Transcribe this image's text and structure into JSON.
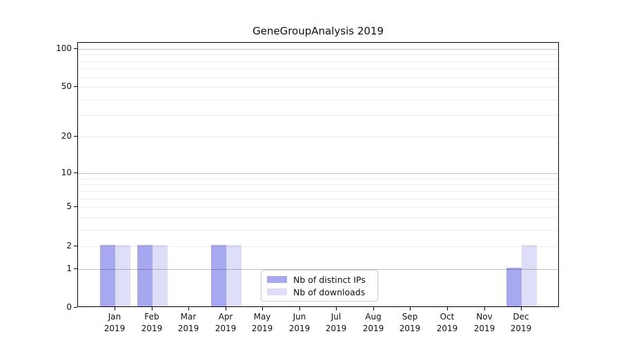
{
  "title": "GeneGroupAnalysis 2019",
  "chart_data": {
    "type": "bar",
    "title": "GeneGroupAnalysis 2019",
    "categories": [
      "Jan 2019",
      "Feb 2019",
      "Mar 2019",
      "Apr 2019",
      "May 2019",
      "Jun 2019",
      "Jul 2019",
      "Aug 2019",
      "Sep 2019",
      "Oct 2019",
      "Nov 2019",
      "Dec 2019"
    ],
    "series": [
      {
        "name": "Nb of distinct IPs",
        "color": "#a8a8f0",
        "values": [
          2,
          2,
          0,
          2,
          0,
          0,
          0,
          0,
          0,
          0,
          0,
          1
        ]
      },
      {
        "name": "Nb of downloads",
        "color": "#dedef8",
        "values": [
          2,
          2,
          0,
          2,
          0,
          0,
          0,
          0,
          0,
          0,
          0,
          2
        ]
      }
    ],
    "xlabel": "",
    "ylabel": "",
    "yscale": "log10(1+v)",
    "ylim": [
      0,
      112
    ],
    "yticks": [
      0,
      1,
      2,
      5,
      10,
      20,
      50,
      100
    ],
    "major_grid_values": [
      1,
      10,
      100
    ],
    "minor_grid_values": [
      2,
      3,
      4,
      5,
      6,
      7,
      8,
      9,
      20,
      30,
      40,
      50,
      60,
      70,
      80,
      90
    ],
    "grid": "both",
    "grid_major_color": "rgba(0,0,0,0.24)",
    "grid_minor_color": "rgba(0,0,0,0.07)",
    "axis_color": "#000000",
    "legend_position": "inside-bottom-center"
  }
}
